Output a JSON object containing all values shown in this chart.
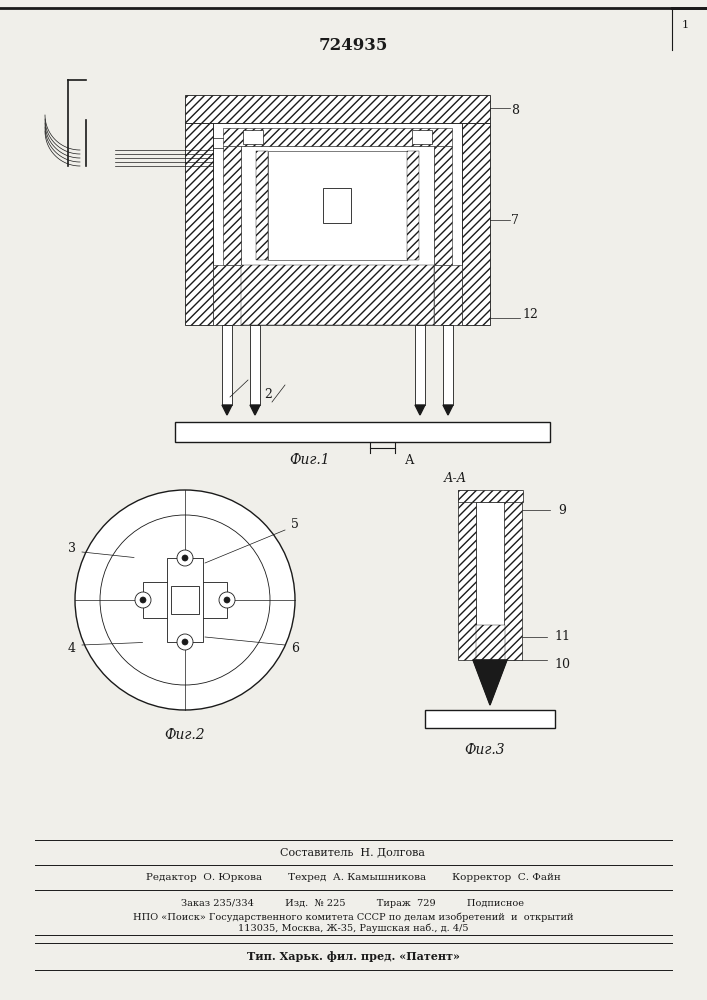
{
  "title_number": "724935",
  "background_color": "#f0efea",
  "line_color": "#1a1a1a",
  "fig1_label": "Фиг.1",
  "fig2_label": "Фиг.2",
  "fig3_label": "Фиг.3",
  "section_label": "А-А",
  "editor_line": "Редактор  О. Юркова        Техред  А. Камышникова        Корректор  С. Файн",
  "order_line": "Заказ 235/334          Изд.  № 225          Тираж  729          Подписное",
  "npo_line": "НПО «Поиск» Государственного комитета СССР по делам изобретений  и  открытий",
  "address_line": "113035, Москва, Ж-35, Раушская наб., д. 4/5",
  "tip_line": "Тип. Харьк. фил. пред. «Патент»",
  "sostavitel_line": "Составитель  Н. Долгова"
}
